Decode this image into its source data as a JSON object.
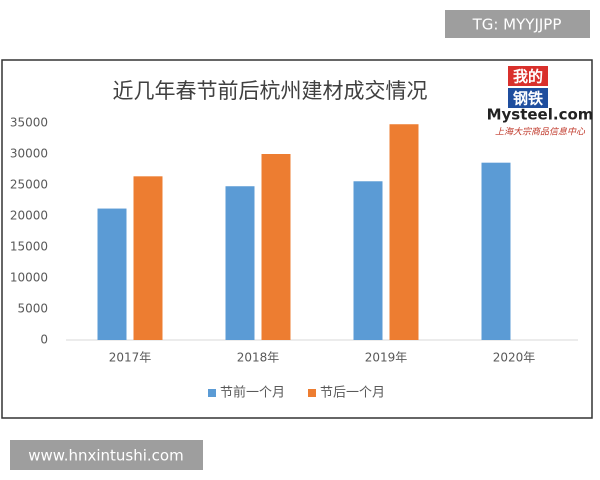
{
  "chart_data": {
    "type": "bar",
    "title": "近几年春节前后杭州建材成交情况",
    "categories": [
      "2017年",
      "2018年",
      "2019年",
      "2020年"
    ],
    "series": [
      {
        "name": "节前一个月",
        "color": "#5b9bd5",
        "values": [
          21200,
          24800,
          25600,
          28600
        ]
      },
      {
        "name": "节后一个月",
        "color": "#ed7d31",
        "values": [
          26400,
          30000,
          34800,
          null
        ]
      }
    ],
    "ylim": [
      0,
      35000
    ],
    "yticks": [
      0,
      5000,
      10000,
      15000,
      20000,
      25000,
      30000,
      35000
    ],
    "grid": false,
    "legend": "bottom"
  },
  "logo": {
    "line1": "我的",
    "line2": "钢铁",
    "site": "Mysteel.com",
    "tagline": "上海大宗商品信息中心"
  },
  "watermarks": {
    "top": "TG: MYYJJPP",
    "bottom": "www.hnxintushi.com"
  }
}
